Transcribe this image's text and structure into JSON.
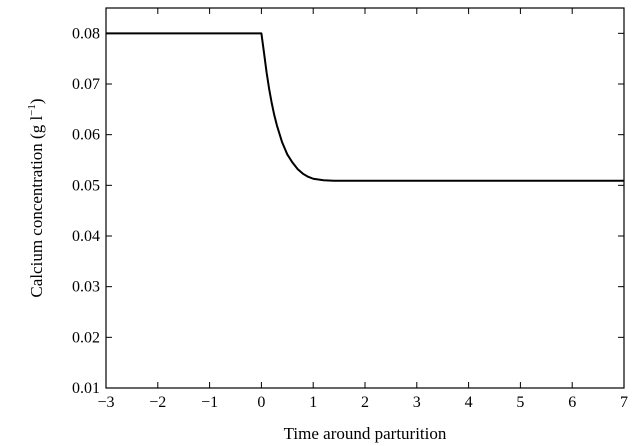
{
  "chart_data": {
    "type": "line",
    "title": "",
    "xlabel": "Time around parturition",
    "ylabel": "Calcium concentration (g l",
    "ylabel_superscript": "−1",
    "ylabel_suffix": ")",
    "xlim": [
      -3,
      7
    ],
    "ylim": [
      0.01,
      0.085
    ],
    "xticks": [
      -3,
      -2,
      -1,
      0,
      1,
      2,
      3,
      4,
      5,
      6,
      7
    ],
    "xtick_labels": [
      "−3",
      "−2",
      "−1",
      "0",
      "1",
      "2",
      "3",
      "4",
      "5",
      "6",
      "7"
    ],
    "yticks": [
      0.01,
      0.02,
      0.03,
      0.04,
      0.05,
      0.06,
      0.07,
      0.08
    ],
    "ytick_labels": [
      "0.01",
      "0.02",
      "0.03",
      "0.04",
      "0.05",
      "0.06",
      "0.07",
      "0.08"
    ],
    "grid": false,
    "legend": "none",
    "series": [
      {
        "color": "#000000",
        "x": [
          -3,
          -2,
          -1,
          0,
          0.05,
          0.1,
          0.15,
          0.2,
          0.25,
          0.3,
          0.4,
          0.5,
          0.6,
          0.7,
          0.8,
          0.9,
          1.0,
          1.2,
          1.4,
          2,
          3,
          4,
          5,
          6,
          7
        ],
        "y": [
          0.08,
          0.08,
          0.08,
          0.08,
          0.0762,
          0.0723,
          0.069,
          0.0662,
          0.0638,
          0.0618,
          0.0585,
          0.0561,
          0.0545,
          0.0532,
          0.0523,
          0.0517,
          0.0513,
          0.051,
          0.0509,
          0.0509,
          0.0509,
          0.0509,
          0.0509,
          0.0509,
          0.0509
        ]
      }
    ]
  }
}
